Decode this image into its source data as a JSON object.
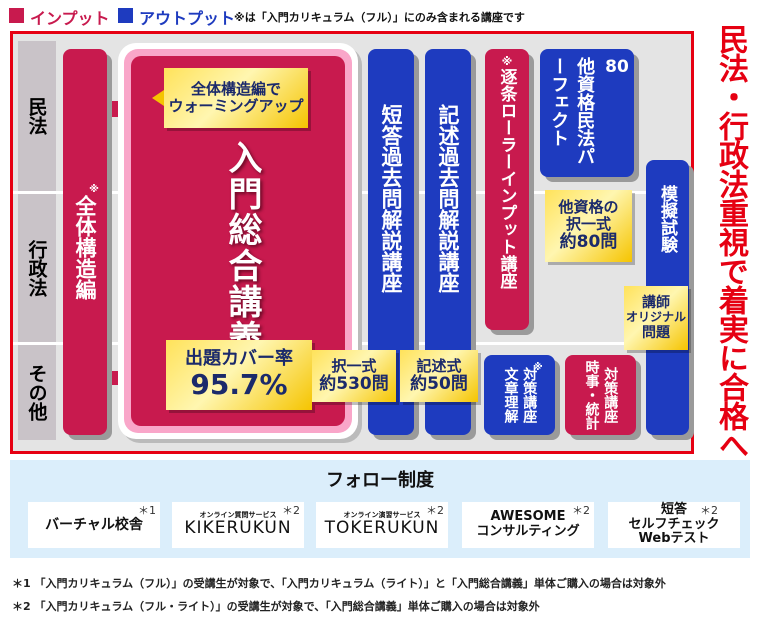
{
  "legend": {
    "input": "インプット",
    "output": "アウトプット",
    "note": "※は「入門カリキュラム（フル）」にのみ含まれる講座です",
    "input_color": "#c81a4e",
    "output_color": "#1e3bbf"
  },
  "rows": [
    "民法",
    "行政法",
    "その他"
  ],
  "courses": {
    "overview": {
      "mark": "※",
      "label": "全体構造編"
    },
    "callout": "全体構造編で\nウォーミングアップ",
    "main": "入門総合講義",
    "coverage": {
      "label": "出題カバー率",
      "value": "95.7%"
    },
    "tanto": "短答過去問解説講座",
    "kijutsu": "記述過去問解説講座",
    "tanto_badge": {
      "label": "択一式",
      "value": "約530問"
    },
    "kijutsu_badge": {
      "label": "記述式",
      "value": "約50問"
    },
    "chikujo": {
      "mark": "※",
      "label": "逐条ローラーインプット講座"
    },
    "other_license": {
      "num": "80",
      "label": "他資格民法パーフェクト"
    },
    "other_badge": {
      "line1": "他資格の",
      "line2": "択一式",
      "value": "約80問"
    },
    "mock": "模擬試験",
    "mock_badge": {
      "line1": "講師",
      "line2": "オリジナル",
      "line3": "問題"
    },
    "bunsho": {
      "col1": "文章理解",
      "mark": "※",
      "col2": "対策講座"
    },
    "jiji": {
      "col1": "時事・統計",
      "col2": "対策講座"
    }
  },
  "slogan": "民法・行政法重視で着実に合格へ！",
  "follow": {
    "title": "フォロー制度",
    "items": [
      {
        "label": "バーチャル校舎",
        "mark": "＊1"
      },
      {
        "sub": "オンライン質問サービス",
        "label": "KIKERUKUN",
        "mark": "＊2"
      },
      {
        "sub": "オンライン演習サービス",
        "label": "TOKERUKUN",
        "mark": "＊2"
      },
      {
        "label": "AWESOME",
        "label2": "コンサルティング",
        "mark": "＊2"
      },
      {
        "label": "短答",
        "label2": "セルフチェック",
        "label3": "Webテスト",
        "mark": "＊2"
      }
    ]
  },
  "footnotes": [
    "＊1 「入門カリキュラム（フル）」の受講生が対象で、「入門カリキュラム（ライト）」と「入門総合講義」単体ご購入の場合は対象外",
    "＊2 「入門カリキュラム（フル・ライト）」の受講生が対象で、「入門総合講義」単体ご購入の場合は対象外"
  ]
}
